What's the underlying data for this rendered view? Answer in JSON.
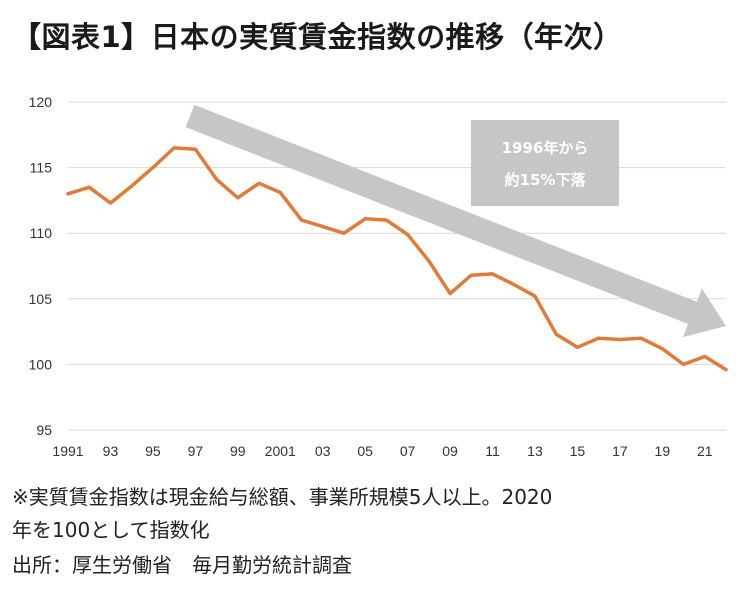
{
  "title": "【図表1】日本の実質賃金指数の推移（年次）",
  "notes": {
    "line1": "※実質賃金指数は現金給与総額、事業所規模5人以上。2020",
    "line2": "年を100として指数化",
    "source": "出所：厚生労働省　毎月勤労統計調査"
  },
  "annotation": {
    "line1": "1996年から",
    "line2": "約15%下落"
  },
  "colors": {
    "line": "#e07b39",
    "arrow": "#c6c6c6",
    "callout": "#c6c6c6",
    "grid": "#d9d9d9"
  },
  "chart_data": {
    "type": "line",
    "title": "",
    "xlabel": "",
    "ylabel": "",
    "ylim": [
      95,
      120
    ],
    "yticks": [
      "95",
      "100",
      "105",
      "110",
      "115",
      "120"
    ],
    "xticks": [
      "1991",
      "93",
      "95",
      "97",
      "99",
      "2001",
      "03",
      "05",
      "07",
      "09",
      "11",
      "13",
      "15",
      "17",
      "19",
      "21"
    ],
    "grid": true,
    "x": [
      1991,
      1992,
      1993,
      1994,
      1995,
      1996,
      1997,
      1998,
      1999,
      2000,
      2001,
      2002,
      2003,
      2004,
      2005,
      2006,
      2007,
      2008,
      2009,
      2010,
      2011,
      2012,
      2013,
      2014,
      2015,
      2016,
      2017,
      2018,
      2019,
      2020,
      2021,
      2022
    ],
    "series": [
      {
        "values": [
          113.0,
          113.5,
          112.3,
          113.6,
          115.0,
          116.5,
          116.4,
          114.1,
          112.7,
          113.8,
          113.1,
          111.0,
          110.5,
          110.0,
          111.1,
          111.0,
          109.9,
          107.9,
          105.4,
          106.8,
          106.9,
          106.1,
          105.2,
          102.3,
          101.3,
          102.0,
          101.9,
          102.0,
          101.2,
          100.0,
          100.6,
          99.6
        ]
      }
    ]
  }
}
